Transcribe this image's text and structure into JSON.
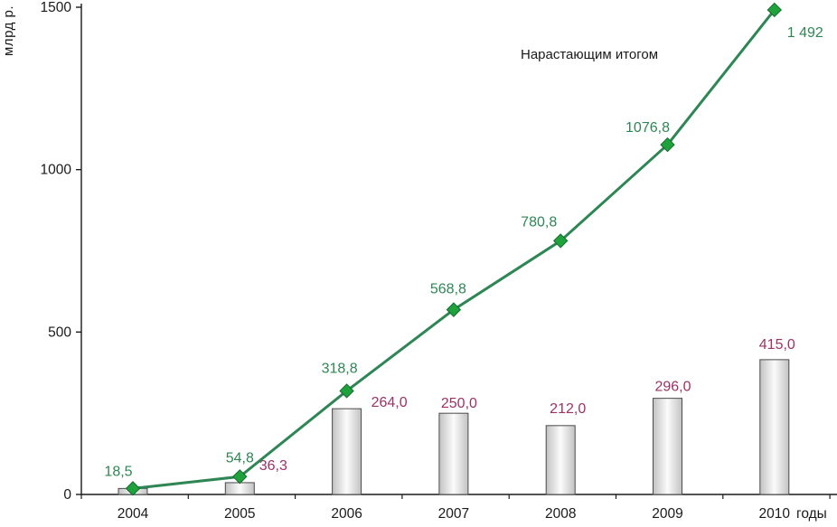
{
  "chart_data": {
    "type": "bar",
    "title": "",
    "categories": [
      "2004",
      "2005",
      "2006",
      "2007",
      "2008",
      "2009",
      "2010"
    ],
    "series": [
      {
        "name": "",
        "type": "bar",
        "values": [
          18.5,
          36.3,
          264.0,
          250.0,
          212.0,
          296.0,
          415.0
        ],
        "labels": [
          "",
          "36,3",
          "264,0",
          "250,0",
          "212,0",
          "296,0",
          "415,0"
        ],
        "label_color": "#993366"
      },
      {
        "name": "Нарастающим итогом",
        "type": "line",
        "values": [
          18.5,
          54.8,
          318.8,
          568.8,
          780.8,
          1076.8,
          1491.8
        ],
        "labels": [
          "18,5",
          "54,8",
          "318,8",
          "568,8",
          "780,8",
          "1076,8",
          "1 492"
        ],
        "label_color": "#2E8655"
      }
    ],
    "annotation": "Нарастающим итогом",
    "ylabel": "млрд р.",
    "xlabel": "годы",
    "ylim": [
      0,
      1500
    ],
    "yticks": [
      0,
      500,
      1000,
      1500
    ],
    "ytick_labels": [
      "0",
      "500",
      "1000",
      "1500"
    ],
    "grid": false,
    "legend_position": "in-plot annotation",
    "colors": {
      "line": "#2E8655",
      "marker_fill": "#1FA23C",
      "marker_stroke": "#156B2F",
      "bar_border": "#4a4a4a",
      "bar_edge": "#c2c2c2",
      "bar_center": "#fbfbfb",
      "axis": "#1a1a1a",
      "text": "#1a1a1a"
    }
  }
}
